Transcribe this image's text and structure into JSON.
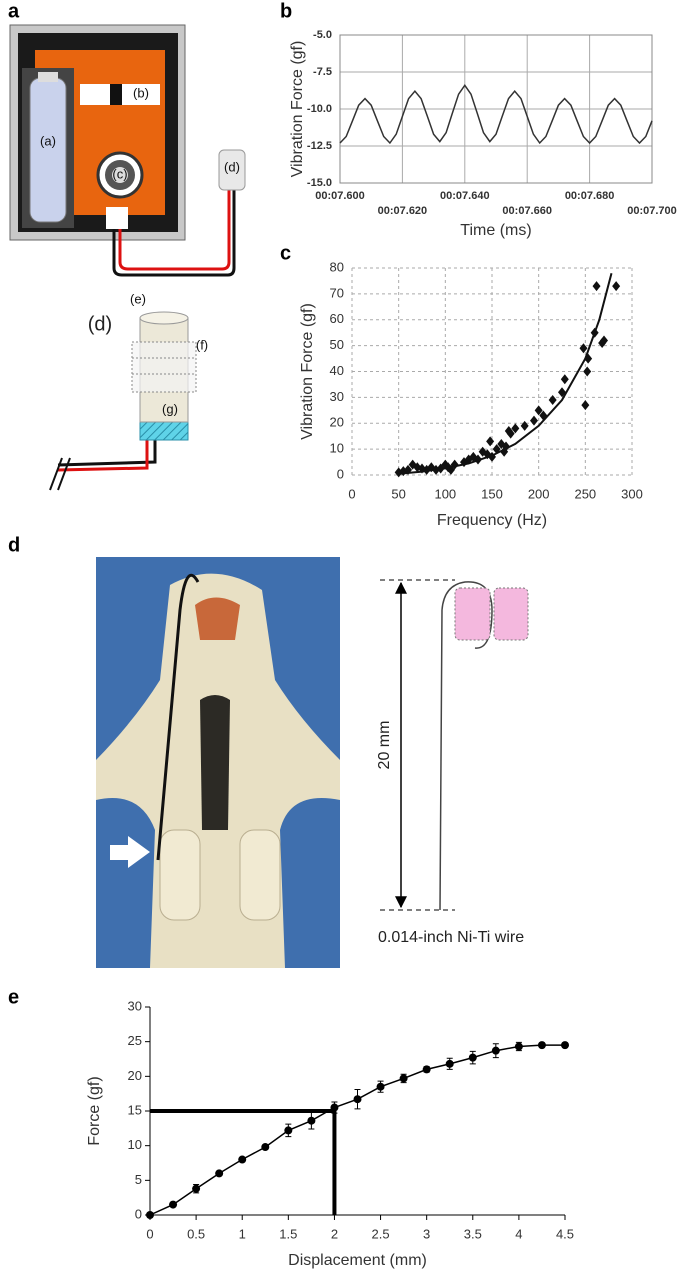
{
  "panel_labels": [
    "a",
    "b",
    "c",
    "d",
    "e"
  ],
  "device_diagram": {
    "labels": [
      "(a)",
      "(b)",
      "(c)",
      "(d)"
    ]
  },
  "probe_diagram": {
    "labels": [
      "(d)",
      "(e)",
      "(f)",
      "(g)"
    ]
  },
  "wire_diagram": {
    "length_label": "20 mm",
    "wire_label": "0.014-inch Ni-Ti wire"
  },
  "chart_data": [
    {
      "type": "line",
      "x_label": "Time (ms)",
      "y_label": "Vibration Force (gf)",
      "color": "#333333",
      "grid": true,
      "xlim": [
        7.6,
        7.7
      ],
      "xticks": [
        {
          "value": 7.6,
          "label": "00:07.600"
        },
        {
          "value": 7.62,
          "label": "00:07.620"
        },
        {
          "value": 7.64,
          "label": "00:07.640"
        },
        {
          "value": 7.66,
          "label": "00:07.660"
        },
        {
          "value": 7.68,
          "label": "00:07.680"
        },
        {
          "value": 7.7,
          "label": "00:07.700"
        }
      ],
      "ylim": [
        -15,
        -5
      ],
      "yticks": [
        {
          "value": -5,
          "label": "-5.0"
        },
        {
          "value": -7.5,
          "label": "-7.5"
        },
        {
          "value": -10,
          "label": "-10.0"
        },
        {
          "value": -12.5,
          "label": "-12.5"
        },
        {
          "value": -15,
          "label": "-15.0"
        }
      ],
      "x": [
        7.6,
        7.602,
        7.604,
        7.606,
        7.608,
        7.61,
        7.612,
        7.614,
        7.616,
        7.618,
        7.62,
        7.622,
        7.624,
        7.626,
        7.628,
        7.63,
        7.632,
        7.634,
        7.636,
        7.638,
        7.64,
        7.642,
        7.644,
        7.646,
        7.648,
        7.65,
        7.652,
        7.654,
        7.656,
        7.658,
        7.66,
        7.662,
        7.664,
        7.666,
        7.668,
        7.67,
        7.672,
        7.674,
        7.676,
        7.678,
        7.68,
        7.682,
        7.684,
        7.686,
        7.688,
        7.69,
        7.692,
        7.694,
        7.696,
        7.698,
        7.7
      ],
      "values": [
        -12.3,
        -11.86,
        -10.8,
        -9.74,
        -9.3,
        -9.74,
        -10.8,
        -11.86,
        -12.3,
        -11.7,
        -10.5,
        -9.3,
        -8.8,
        -9.3,
        -10.5,
        -11.7,
        -12.2,
        -11.6,
        -10.3,
        -9.0,
        -8.4,
        -9.0,
        -10.3,
        -11.6,
        -12.2,
        -11.7,
        -10.5,
        -9.3,
        -8.8,
        -9.3,
        -10.5,
        -11.7,
        -12.3,
        -11.86,
        -10.8,
        -9.74,
        -9.3,
        -9.74,
        -10.8,
        -11.86,
        -12.3,
        -11.86,
        -10.8,
        -9.74,
        -9.3,
        -9.74,
        -10.8,
        -11.86,
        -12.3,
        -11.86,
        -10.8
      ]
    },
    {
      "type": "scatter",
      "x_label": "Frequency (Hz)",
      "y_label": "Vibration Force (gf)",
      "color": "#111111",
      "grid": true,
      "xlim": [
        0,
        300
      ],
      "xticks": [
        0,
        50,
        100,
        150,
        200,
        250,
        300
      ],
      "ylim": [
        0,
        80
      ],
      "yticks": [
        0,
        10,
        20,
        30,
        40,
        50,
        60,
        70,
        80
      ],
      "x": [
        50,
        55,
        60,
        65,
        70,
        75,
        80,
        85,
        90,
        95,
        100,
        103,
        106,
        110,
        120,
        125,
        130,
        135,
        140,
        145,
        148,
        150,
        155,
        160,
        163,
        165,
        168,
        170,
        175,
        185,
        195,
        200,
        205,
        215,
        225,
        228,
        248,
        250,
        252,
        253,
        260,
        262,
        268,
        270,
        283
      ],
      "values": [
        1,
        1.5,
        2,
        4,
        3,
        2.5,
        2,
        3,
        2,
        2.5,
        4,
        3,
        2,
        4,
        5,
        6,
        7,
        6,
        9,
        8,
        13,
        7,
        10,
        12,
        9,
        11,
        17,
        16,
        18,
        19,
        21,
        25,
        23,
        29,
        32,
        37,
        49,
        27,
        40,
        45,
        55,
        73,
        51,
        52,
        73
      ],
      "fit": {
        "x": [
          50,
          75,
          100,
          125,
          150,
          175,
          200,
          225,
          250,
          265,
          278
        ],
        "values": [
          0.5,
          1.3,
          2.6,
          4.5,
          7.5,
          12,
          19,
          29,
          45,
          60,
          78
        ]
      }
    },
    {
      "type": "line",
      "x_label": "Displacement (mm)",
      "y_label": "Force (gf)",
      "color": "#000000",
      "grid": false,
      "xlim": [
        0,
        4.5
      ],
      "xticks": [
        0,
        0.5,
        1,
        1.5,
        2,
        2.5,
        3,
        3.5,
        4,
        4.5
      ],
      "ylim": [
        0,
        30
      ],
      "yticks": [
        0,
        5,
        10,
        15,
        20,
        25,
        30
      ],
      "x": [
        0,
        0.25,
        0.5,
        0.75,
        1,
        1.25,
        1.5,
        1.75,
        2,
        2.25,
        2.5,
        2.75,
        3,
        3.25,
        3.5,
        3.75,
        4,
        4.25,
        4.5
      ],
      "values": [
        0,
        1.5,
        3.8,
        6,
        8,
        9.8,
        12.2,
        13.6,
        15.5,
        16.7,
        18.5,
        19.7,
        21,
        21.8,
        22.7,
        23.7,
        24.3,
        24.5,
        24.5
      ],
      "errors": [
        0,
        0.2,
        0.6,
        0.3,
        0.3,
        0.3,
        0.9,
        1.2,
        0.8,
        1.4,
        0.8,
        0.6,
        0.4,
        0.8,
        0.9,
        1,
        0.6,
        0.2,
        0.2
      ],
      "reference": {
        "x": 2,
        "y": 15
      }
    }
  ]
}
